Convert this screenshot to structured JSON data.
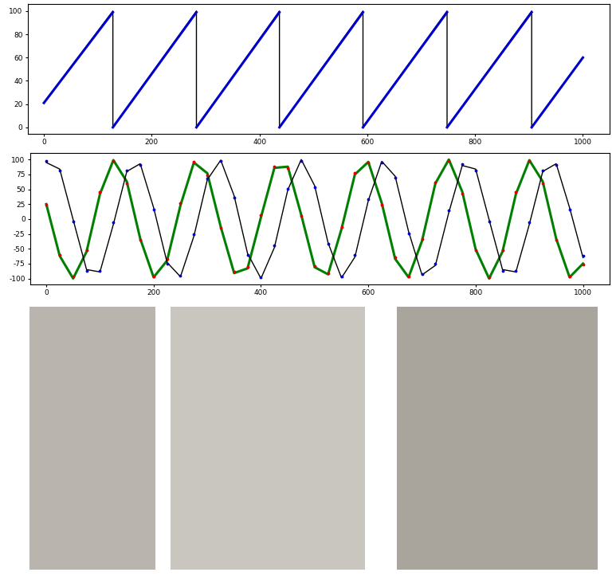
{
  "chart_data": [
    {
      "type": "line",
      "xlim": [
        -30,
        1050
      ],
      "xticks": [
        0,
        200,
        400,
        600,
        800,
        1000
      ],
      "ylim": [
        -5.5,
        106
      ],
      "yticks": [
        0,
        20,
        40,
        60,
        80,
        100
      ],
      "grid": false,
      "series": [
        {
          "type": "line",
          "color": "#000000",
          "marker": "none",
          "line_style": "solid",
          "x": [
            0,
            128,
            128,
            283,
            283,
            437,
            437,
            592,
            592,
            748,
            748,
            905,
            905,
            1000
          ],
          "values": [
            21,
            100,
            0,
            100,
            0,
            100,
            0,
            100,
            0,
            100,
            0,
            100,
            0,
            60
          ]
        },
        {
          "type": "line",
          "color": "#0000cc",
          "marker": "none",
          "line_style": "solid",
          "x": [
            0,
            128,
            128,
            128,
            283,
            283,
            283,
            437,
            437,
            437,
            592,
            592,
            592,
            748,
            748,
            748,
            905,
            905,
            905,
            1000
          ],
          "values": [
            21,
            99,
            null,
            0,
            99,
            null,
            0,
            99,
            null,
            0,
            99,
            null,
            0,
            99,
            null,
            0,
            99,
            null,
            0,
            60
          ]
        }
      ]
    },
    {
      "type": "line",
      "xlim": [
        -30,
        1050
      ],
      "xticks": [
        0,
        200,
        400,
        600,
        800,
        1000
      ],
      "ylim": [
        -110,
        111
      ],
      "yticks": [
        -100,
        -75,
        -50,
        -25,
        0,
        25,
        50,
        75,
        100
      ],
      "grid": false,
      "series": [
        {
          "type": "line",
          "color": "#008000",
          "marker": "none",
          "line_style": "solid",
          "x": [
            0,
            25,
            50,
            75,
            100,
            125,
            150,
            175,
            200,
            225,
            250,
            275,
            300,
            325,
            350,
            375,
            400,
            425,
            450,
            475,
            500,
            525,
            550,
            575,
            600,
            625,
            650,
            675,
            700,
            725,
            750,
            775,
            800,
            825,
            850,
            875,
            900,
            925,
            950,
            975,
            1000
          ],
          "values": [
            25,
            -62,
            -100,
            -55,
            42,
            99,
            63,
            -33,
            -98,
            -70,
            23,
            95,
            77,
            -13,
            -91,
            -83,
            3,
            86,
            88,
            7,
            -81,
            -93,
            -17,
            75,
            96,
            27,
            -67,
            -98,
            -37,
            60,
            100,
            46,
            -51,
            -100,
            -55,
            42,
            99,
            63,
            -33,
            -98,
            -75
          ]
        },
        {
          "type": "scatter",
          "color": "#dd0000",
          "marker": "point",
          "line_style": "none",
          "x": [
            0,
            25,
            50,
            75,
            100,
            125,
            150,
            175,
            200,
            225,
            250,
            275,
            300,
            325,
            350,
            375,
            400,
            425,
            450,
            475,
            500,
            525,
            550,
            575,
            600,
            625,
            650,
            675,
            700,
            725,
            750,
            775,
            800,
            825,
            850,
            875,
            900,
            925,
            950,
            975,
            1000
          ],
          "values": [
            24,
            -60,
            -97,
            -52,
            45,
            98,
            60,
            -35,
            -96,
            -67,
            26,
            96,
            74,
            -15,
            -89,
            -80,
            6,
            88,
            86,
            5,
            -79,
            -91,
            -14,
            77,
            95,
            24,
            -65,
            -96,
            -34,
            62,
            98,
            43,
            -53,
            -98,
            -52,
            45,
            98,
            60,
            -35,
            -96,
            -76
          ]
        },
        {
          "type": "line",
          "color": "#000000",
          "marker": "none",
          "line_style": "solid",
          "x": [
            0,
            25,
            50,
            75,
            100,
            125,
            150,
            175,
            200,
            225,
            250,
            275,
            300,
            325,
            350,
            375,
            400,
            425,
            450,
            475,
            500,
            525,
            550,
            575,
            600,
            625,
            650,
            675,
            700,
            725,
            750,
            775,
            800,
            825,
            850,
            875,
            900,
            925,
            950,
            975,
            1000
          ],
          "values": [
            95,
            84,
            -1,
            -85,
            -89,
            -9,
            80,
            93,
            19,
            -73,
            -97,
            -29,
            66,
            99,
            39,
            -58,
            -100,
            -48,
            49,
            100,
            56,
            -40,
            -99,
            -64,
            31,
            97,
            72,
            -21,
            -94,
            -78,
            11,
            90,
            84,
            -1,
            -85,
            -89,
            -9,
            80,
            93,
            19,
            -65
          ]
        },
        {
          "type": "scatter",
          "color": "#0000cc",
          "marker": "point",
          "line_style": "none",
          "x": [
            0,
            25,
            50,
            75,
            100,
            125,
            150,
            175,
            200,
            225,
            250,
            275,
            300,
            325,
            350,
            375,
            400,
            425,
            450,
            475,
            500,
            525,
            550,
            575,
            600,
            625,
            650,
            675,
            700,
            725,
            750,
            775,
            800,
            825,
            850,
            875,
            900,
            925,
            950,
            975,
            1000
          ],
          "values": [
            97,
            82,
            -4,
            -87,
            -87,
            -6,
            82,
            91,
            16,
            -75,
            -95,
            -26,
            68,
            97,
            36,
            -60,
            -98,
            -45,
            51,
            98,
            53,
            -42,
            -97,
            -61,
            34,
            95,
            69,
            -24,
            -92,
            -75,
            14,
            92,
            81,
            -4,
            -87,
            -87,
            -6,
            82,
            91,
            16,
            -62
          ]
        }
      ]
    }
  ]
}
